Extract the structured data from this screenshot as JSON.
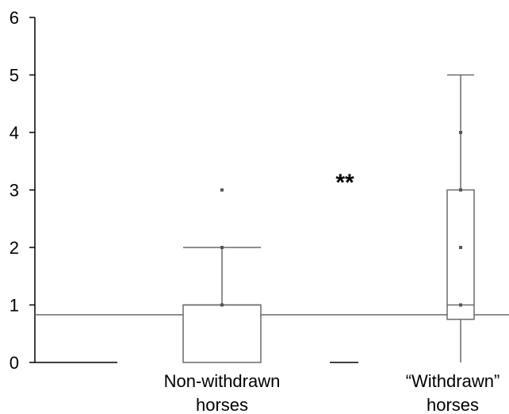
{
  "chart_data": {
    "type": "box",
    "title": "",
    "xlabel": "",
    "ylabel": "",
    "ylim": [
      0,
      6
    ],
    "yticks": [
      0,
      1,
      2,
      3,
      4,
      5,
      6
    ],
    "grid": false,
    "reference_line": 0.83,
    "annotation": "**",
    "categories": [
      "Non-withdrawn horses",
      "“Withdrawn” horses"
    ],
    "category_label_lines": [
      [
        "Non-withdrawn",
        "horses"
      ],
      [
        "“Withdrawn”",
        "horses"
      ]
    ],
    "boxes": [
      {
        "min": 0,
        "q1": 0,
        "median": 1,
        "q3": 1,
        "max": 2,
        "points": [
          1,
          2,
          3
        ]
      },
      {
        "min": 0,
        "q1": 0.75,
        "median": 1,
        "q3": 3,
        "max": 5,
        "points": [
          1,
          2,
          3,
          4
        ]
      }
    ],
    "colors": {
      "axis": "#000000",
      "box": "#6a6a6a",
      "points": "#555555"
    }
  }
}
